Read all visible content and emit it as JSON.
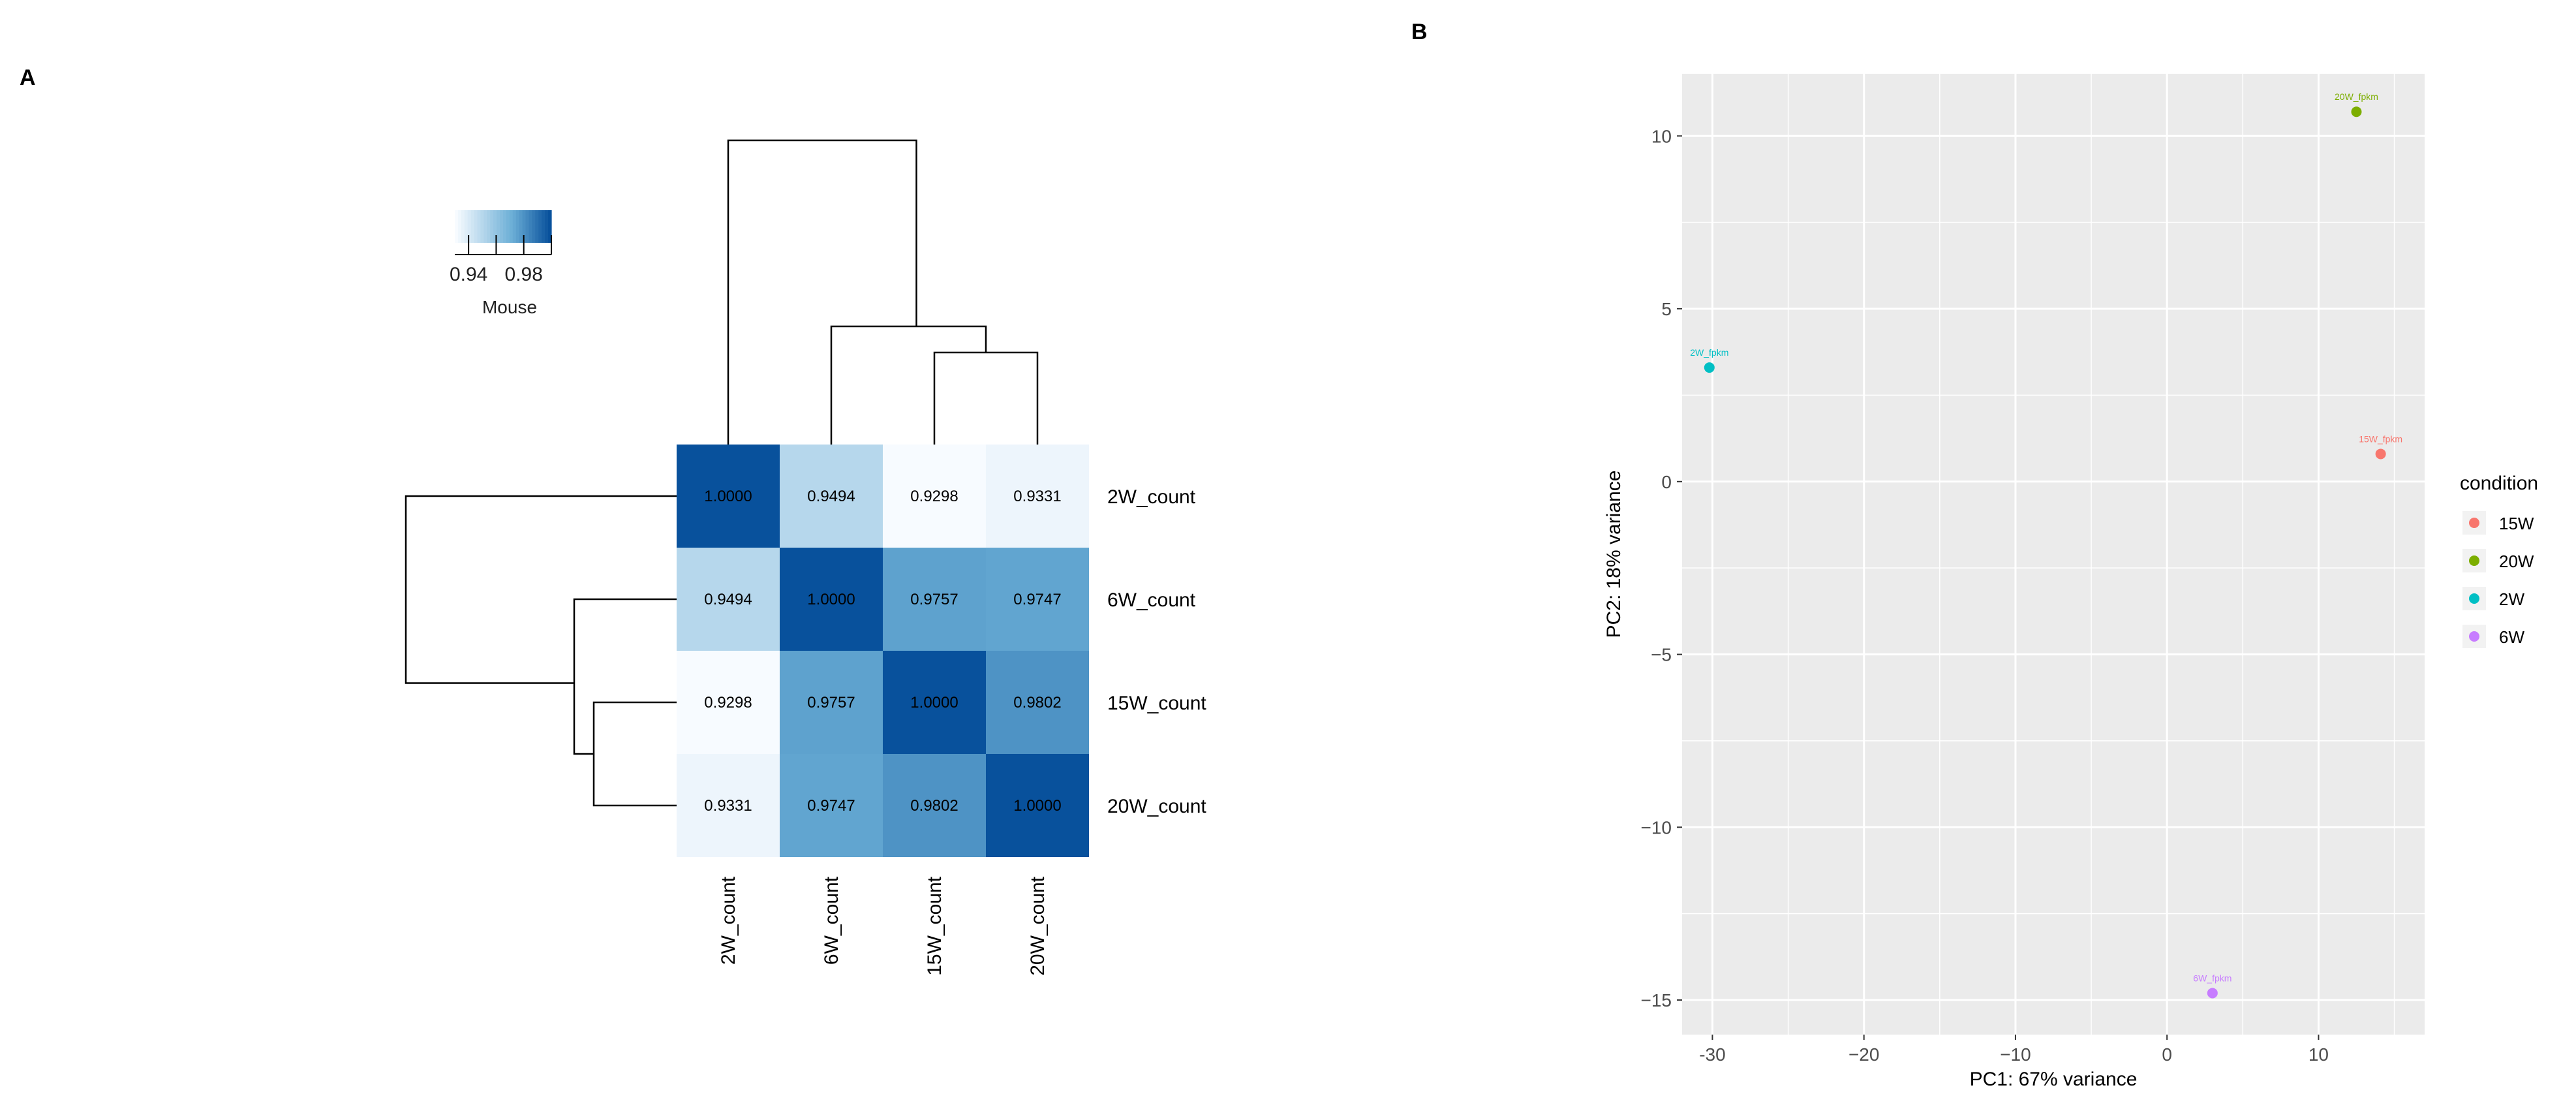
{
  "panels": {
    "a_label": "A",
    "b_label": "B"
  },
  "colors": {
    "heat_low": "#f7fbff",
    "heat_mid": "#6baed6",
    "heat_high": "#08519c",
    "pca_panel_bg": "#ebebeb",
    "pca_grid": "#ffffff",
    "cond_15W": "#f8766d",
    "cond_20W": "#7cae00",
    "cond_2W": "#00bfc4",
    "cond_6W": "#c77cff"
  },
  "chart_data": [
    {
      "type": "heatmap",
      "rows": [
        "2W_count",
        "6W_count",
        "15W_count",
        "20W_count"
      ],
      "columns": [
        "2W_count",
        "6W_count",
        "15W_count",
        "20W_count"
      ],
      "values": [
        [
          1.0,
          0.9494,
          0.9298,
          0.9331
        ],
        [
          0.9494,
          1.0,
          0.9757,
          0.9747
        ],
        [
          0.9298,
          0.9757,
          1.0,
          0.9802
        ],
        [
          0.9331,
          0.9747,
          0.9802,
          1.0
        ]
      ],
      "cell_labels": [
        [
          "1.0000",
          "0.9494",
          "0.9298",
          "0.9331"
        ],
        [
          "0.9494",
          "1.0000",
          "0.9757",
          "0.9747"
        ],
        [
          "0.9298",
          "0.9757",
          "1.0000",
          "0.9802"
        ],
        [
          "0.9331",
          "0.9747",
          "0.9802",
          "1.0000"
        ]
      ],
      "color_range": [
        0.93,
        1.0
      ],
      "legend": {
        "title": "Mouse",
        "ticks": [
          0.94,
          0.98
        ],
        "tick_labels": [
          "0.94",
          "0.98"
        ],
        "placement": "top-left"
      },
      "dendrogram": "rows and columns clustered: 2W_count | (6W_count | (15W_count, 20W_count))"
    },
    {
      "type": "scatter",
      "xlabel": "PC1: 67% variance",
      "ylabel": "PC2: 18% variance",
      "xlim": [
        -32,
        17
      ],
      "ylim": [
        -16,
        11.8
      ],
      "xticks": [
        -30,
        -20,
        -10,
        0,
        10
      ],
      "xtick_labels": [
        "-30",
        "−20",
        "−10",
        "0",
        "10"
      ],
      "yticks": [
        -15,
        -10,
        -5,
        0,
        5,
        10
      ],
      "ytick_labels": [
        "−15",
        "−10",
        "−5",
        "0",
        "5",
        "10"
      ],
      "grid": true,
      "legend": {
        "title": "condition",
        "placement": "right",
        "entries": [
          "15W",
          "20W",
          "2W",
          "6W"
        ]
      },
      "points": [
        {
          "condition": "20W",
          "label": "20W_fpkm",
          "x": 12.5,
          "y": 10.7
        },
        {
          "condition": "2W",
          "label": "2W_fpkm",
          "x": -30.2,
          "y": 3.3
        },
        {
          "condition": "15W",
          "label": "15W_fpkm",
          "x": 14.1,
          "y": 0.8
        },
        {
          "condition": "6W",
          "label": "6W_fpkm",
          "x": 3.0,
          "y": -14.8
        }
      ]
    }
  ]
}
